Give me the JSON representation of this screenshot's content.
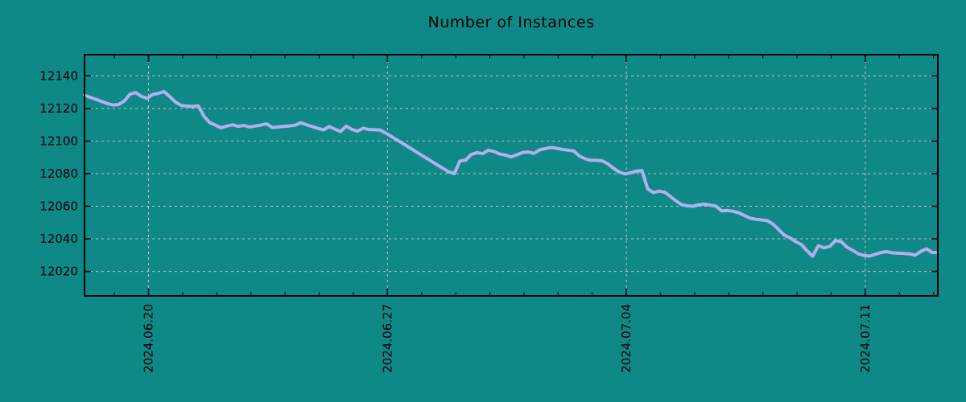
{
  "chart_data": {
    "type": "line",
    "title": "Number of Instances",
    "legend": "none",
    "grid": true,
    "x_axis": {
      "unit": "hours since 2024-06-18 00:00",
      "range": [
        3,
        603
      ],
      "major_ticks": [
        {
          "hour": 48,
          "label": "2024.06.20"
        },
        {
          "hour": 216,
          "label": "2024.06.27"
        },
        {
          "hour": 384,
          "label": "2024.07.04"
        },
        {
          "hour": 552,
          "label": "2024.07.11"
        }
      ],
      "minor_tick_every_hours": 24
    },
    "y_axis": {
      "range": [
        12005,
        12153
      ],
      "ticks": [
        12020,
        12040,
        12060,
        12080,
        12100,
        12120,
        12140
      ]
    },
    "series": [
      {
        "name": "instances",
        "color": "#b2b0ea",
        "x_start_hour": 3,
        "x_step_hours": 4,
        "values": [
          12128.2,
          12126.8,
          12125.6,
          12124.3,
          12123.0,
          12122.1,
          12122.4,
          12124.6,
          12128.8,
          12129.7,
          12127.4,
          12126.2,
          12128.6,
          12129.3,
          12130.3,
          12127.2,
          12123.9,
          12121.8,
          12121.5,
          12121.2,
          12121.6,
          12115.2,
          12111.3,
          12109.8,
          12108.1,
          12109.2,
          12110.0,
          12109.0,
          12109.6,
          12108.6,
          12109.2,
          12109.8,
          12110.6,
          12108.3,
          12108.6,
          12109.0,
          12109.3,
          12109.7,
          12111.2,
          12110.1,
          12108.9,
          12107.8,
          12106.8,
          12108.9,
          12107.3,
          12105.8,
          12109.2,
          12107.1,
          12106.1,
          12107.9,
          12107.0,
          12107.0,
          12106.7,
          12104.8,
          12102.7,
          12100.5,
          12098.4,
          12096.2,
          12094.1,
          12091.9,
          12089.7,
          12087.6,
          12085.4,
          12083.3,
          12081.1,
          12080.0,
          12087.8,
          12088.3,
          12091.8,
          12092.9,
          12092.2,
          12094.4,
          12093.6,
          12092.0,
          12091.4,
          12090.3,
          12091.6,
          12093.0,
          12093.3,
          12092.4,
          12094.6,
          12095.4,
          12096.1,
          12095.6,
          12094.9,
          12094.4,
          12093.9,
          12090.8,
          12089.1,
          12088.2,
          12088.2,
          12087.9,
          12086.0,
          12083.3,
          12080.9,
          12079.8,
          12080.6,
          12081.5,
          12081.9,
          12070.6,
          12068.4,
          12069.3,
          12068.6,
          12066.0,
          12063.2,
          12060.9,
          12060.2,
          12060.0,
          12060.9,
          12061.3,
          12060.7,
          12060.1,
          12057.1,
          12057.4,
          12056.9,
          12056.0,
          12054.3,
          12052.7,
          12052.0,
          12051.6,
          12051.2,
          12049.1,
          12045.8,
          12042.3,
          12040.6,
          12038.3,
          12036.5,
          12032.7,
          12029.3,
          12035.8,
          12034.5,
          12035.3,
          12038.9,
          12038.3,
          12035.0,
          12033.0,
          12030.8,
          12029.8,
          12029.4,
          12030.5,
          12031.6,
          12032.2,
          12031.4,
          12031.2,
          12031.1,
          12030.8,
          12029.9,
          12032.3,
          12033.9,
          12031.7,
          12031.5
        ]
      }
    ]
  },
  "style": {
    "background": "#0f8888",
    "text_color": "#000000",
    "grid_color": "#c9c4c0",
    "axis_color": "#000000",
    "line_color": "#b2b0ea"
  }
}
